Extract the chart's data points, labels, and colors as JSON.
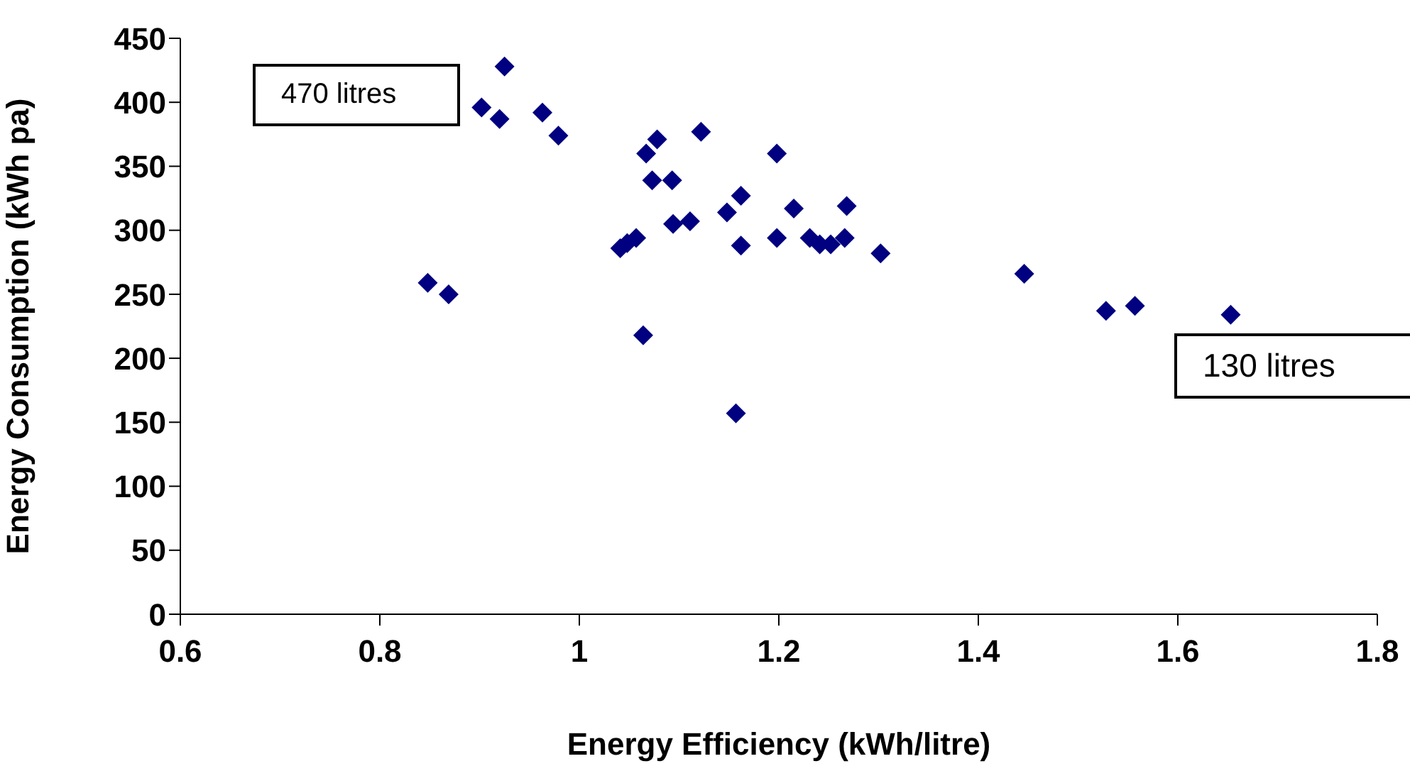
{
  "chart_data": {
    "type": "scatter",
    "xlabel": "Energy Efficiency (kWh/litre)",
    "ylabel": "Energy Consumption (kWh pa)",
    "x": [
      0.848,
      0.869,
      0.925,
      0.902,
      0.92,
      0.963,
      0.979,
      1.041,
      1.048,
      1.057,
      1.064,
      1.078,
      1.067,
      1.073,
      1.093,
      1.094,
      1.111,
      1.122,
      1.148,
      1.162,
      1.162,
      1.157,
      1.198,
      1.198,
      1.215,
      1.268,
      1.231,
      1.241,
      1.252,
      1.266,
      1.302,
      1.446,
      1.528,
      1.557,
      1.653
    ],
    "values": [
      259,
      250,
      428,
      396,
      387,
      392,
      374,
      286,
      290,
      294,
      218,
      371,
      360,
      339,
      339,
      305,
      307,
      377,
      314,
      327,
      288,
      157,
      360,
      294,
      317,
      319,
      294,
      289,
      289,
      294,
      282,
      266,
      237,
      241,
      234
    ],
    "color": "#000080",
    "marker": "diamond",
    "xlim": [
      0.6,
      1.8
    ],
    "xticks": [
      0.6,
      0.8,
      1,
      1.2,
      1.4,
      1.6,
      1.8
    ],
    "ylim": [
      0,
      450
    ],
    "yticks": [
      0,
      50,
      100,
      150,
      200,
      250,
      300,
      350,
      400,
      450
    ],
    "annotations": [
      "470 litres",
      "130 litres"
    ]
  }
}
